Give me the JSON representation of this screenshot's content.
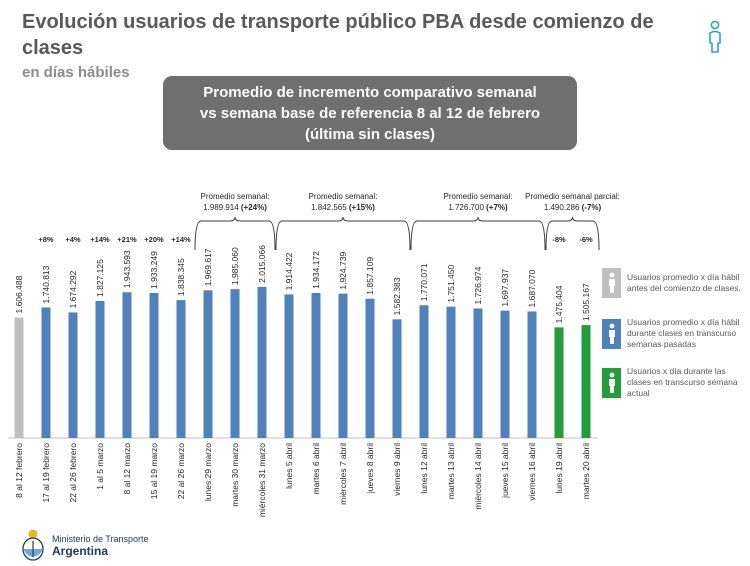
{
  "header": {
    "title": "Evolución usuarios de transporte público PBA desde comienzo de clases",
    "subtitle": "en días hábiles",
    "banner_lines": [
      "Promedio de incremento comparativo semanal",
      "vs semana base de referencia 8 al 12 de febrero",
      "(última sin clases)"
    ]
  },
  "legend": [
    {
      "text": "Usuarios promedio x día hábil antes del comienzo de clases.",
      "color": "#bfbfbf",
      "icon": "person-icon"
    },
    {
      "text": "Usuarios promedio x día hábil durante clases en transcurso semanas pasadas",
      "color": "#4f81bd",
      "icon": "person-icon"
    },
    {
      "text": "Usuarios x día durante las clases en transcurso semana actual",
      "color": "#1f9e3a",
      "icon": "person-icon"
    }
  ],
  "footer": {
    "org_line1": "Ministerio de Transporte",
    "org_line2": "Argentina"
  },
  "colors": {
    "gray": "#bfbfbf",
    "blue": "#4f81bd",
    "green": "#1f9e3a",
    "bracket": "#404040"
  },
  "chart_data": {
    "type": "bar",
    "categories": [
      "8 al 12 febrero",
      "17 al 19 febrero",
      "22 al 26 febrero",
      "1 al 5 marzo",
      "8 al 12 marzo",
      "15 al 19 marzo",
      "22 al 26 marzo",
      "lunes 29 marzo",
      "martes 30 marzo",
      "miércoles 31 marzo",
      "lunes 5 abril",
      "martes 6 abril",
      "miércoles 7 abril",
      "jueves 8 abril",
      "viernes 9 abril",
      "lunes 12 abril",
      "martes 13 abril",
      "miércoles 14 abril",
      "jueves 15 abril",
      "viernes 16 abril",
      "lunes 19 abril",
      "martes 20 abril"
    ],
    "values": [
      1606488,
      1740813,
      1674292,
      1827125,
      1943593,
      1933249,
      1838345,
      1969617,
      1985060,
      2015066,
      1914422,
      1934172,
      1924739,
      1857109,
      1582383,
      1770071,
      1751450,
      1726974,
      1697937,
      1687070,
      1475404,
      1505167
    ],
    "value_labels": [
      "1.606.488",
      "1.740.813",
      "1.674.292",
      "1.827.125",
      "1.943.593",
      "1.933.249",
      "1.838.345",
      "1.969.617",
      "1.985.060",
      "2.015.066",
      "1.914.422",
      "1.934.172",
      "1.924.739",
      "1.857.109",
      "1.582.383",
      "1.770.071",
      "1.751.450",
      "1.726.974",
      "1.697.937",
      "1.687.070",
      "1.475.404",
      "1.505.167"
    ],
    "bar_groups": [
      "gray",
      "blue",
      "blue",
      "blue",
      "blue",
      "blue",
      "blue",
      "blue",
      "blue",
      "blue",
      "blue",
      "blue",
      "blue",
      "blue",
      "blue",
      "blue",
      "blue",
      "blue",
      "blue",
      "blue",
      "green",
      "green"
    ],
    "pct_labels": [
      "",
      "+8%",
      "+4%",
      "+14%",
      "+21%",
      "+20%",
      "+14%",
      "",
      "",
      "",
      "",
      "",
      "",
      "",
      "",
      "",
      "",
      "",
      "",
      "",
      "-8%",
      "-6%"
    ],
    "weekly_averages": [
      {
        "label": "Promedio semanal:",
        "value": "1.989.914",
        "pct": "(+24%)",
        "from": 7,
        "to": 9
      },
      {
        "label": "Promedio semanal:",
        "value": "1.842.565",
        "pct": "(+15%)",
        "from": 10,
        "to": 14
      },
      {
        "label": "Promedio semanal:",
        "value": "1.726.700",
        "pct": "(+7%)",
        "from": 15,
        "to": 19
      },
      {
        "label": "Promedio semanal parcial:",
        "value": "1.490.286",
        "pct": "(-7%)",
        "from": 20,
        "to": 21
      }
    ],
    "ylim": [
      0,
      2100000
    ]
  }
}
